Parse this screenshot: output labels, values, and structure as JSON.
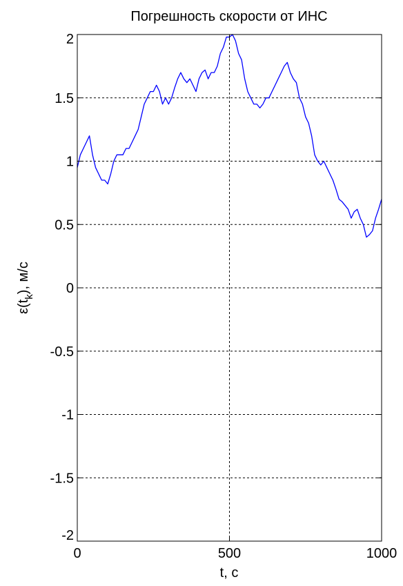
{
  "chart_data": {
    "type": "line",
    "title": "Погрешность скорости от ИНС",
    "xlabel": "t, c",
    "ylabel_parts": {
      "main": "ε(t",
      "sub": "k",
      "tail": "), м/с"
    },
    "xlim": [
      0,
      1000
    ],
    "ylim": [
      -2,
      2
    ],
    "x_ticks": [
      0,
      500,
      1000
    ],
    "x_tick_labels": [
      "0",
      "500",
      "1000"
    ],
    "y_ticks": [
      -2,
      -1.5,
      -1,
      -0.5,
      0,
      0.5,
      1,
      1.5,
      2
    ],
    "y_tick_labels": [
      "-2",
      "-1.5",
      "-1",
      "-0.5",
      "0",
      "0.5",
      "1",
      "1.5",
      "2"
    ],
    "grid": true,
    "series": [
      {
        "color": "#0000ff",
        "x": [
          0,
          10,
          20,
          30,
          40,
          50,
          60,
          70,
          80,
          90,
          100,
          110,
          120,
          130,
          140,
          150,
          160,
          170,
          180,
          190,
          200,
          210,
          220,
          230,
          240,
          250,
          260,
          270,
          280,
          290,
          300,
          310,
          320,
          330,
          340,
          350,
          360,
          370,
          380,
          390,
          400,
          410,
          420,
          430,
          440,
          450,
          460,
          470,
          480,
          490,
          500,
          510,
          520,
          530,
          540,
          550,
          560,
          570,
          580,
          590,
          600,
          610,
          620,
          630,
          640,
          650,
          660,
          670,
          680,
          690,
          700,
          710,
          720,
          730,
          740,
          750,
          760,
          770,
          780,
          790,
          800,
          810,
          820,
          830,
          840,
          850,
          860,
          870,
          880,
          890,
          900,
          910,
          920,
          930,
          940,
          950,
          960,
          970,
          980,
          990,
          1000
        ],
        "values": [
          0.95,
          1.05,
          1.1,
          1.15,
          1.2,
          1.05,
          0.95,
          0.9,
          0.85,
          0.85,
          0.82,
          0.9,
          1.0,
          1.05,
          1.05,
          1.05,
          1.1,
          1.1,
          1.15,
          1.2,
          1.25,
          1.35,
          1.45,
          1.5,
          1.55,
          1.55,
          1.6,
          1.55,
          1.45,
          1.5,
          1.45,
          1.5,
          1.58,
          1.65,
          1.7,
          1.65,
          1.62,
          1.65,
          1.6,
          1.55,
          1.65,
          1.7,
          1.72,
          1.65,
          1.7,
          1.7,
          1.75,
          1.85,
          1.9,
          1.98,
          1.98,
          2.0,
          1.95,
          1.85,
          1.8,
          1.65,
          1.55,
          1.5,
          1.45,
          1.45,
          1.42,
          1.45,
          1.5,
          1.5,
          1.55,
          1.6,
          1.65,
          1.7,
          1.75,
          1.78,
          1.7,
          1.65,
          1.62,
          1.5,
          1.45,
          1.35,
          1.3,
          1.2,
          1.05,
          1.0,
          0.97,
          1.0,
          0.95,
          0.9,
          0.85,
          0.78,
          0.7,
          0.68,
          0.65,
          0.62,
          0.55,
          0.6,
          0.62,
          0.55,
          0.5,
          0.4,
          0.42,
          0.45,
          0.55,
          0.62,
          0.7
        ]
      }
    ]
  }
}
